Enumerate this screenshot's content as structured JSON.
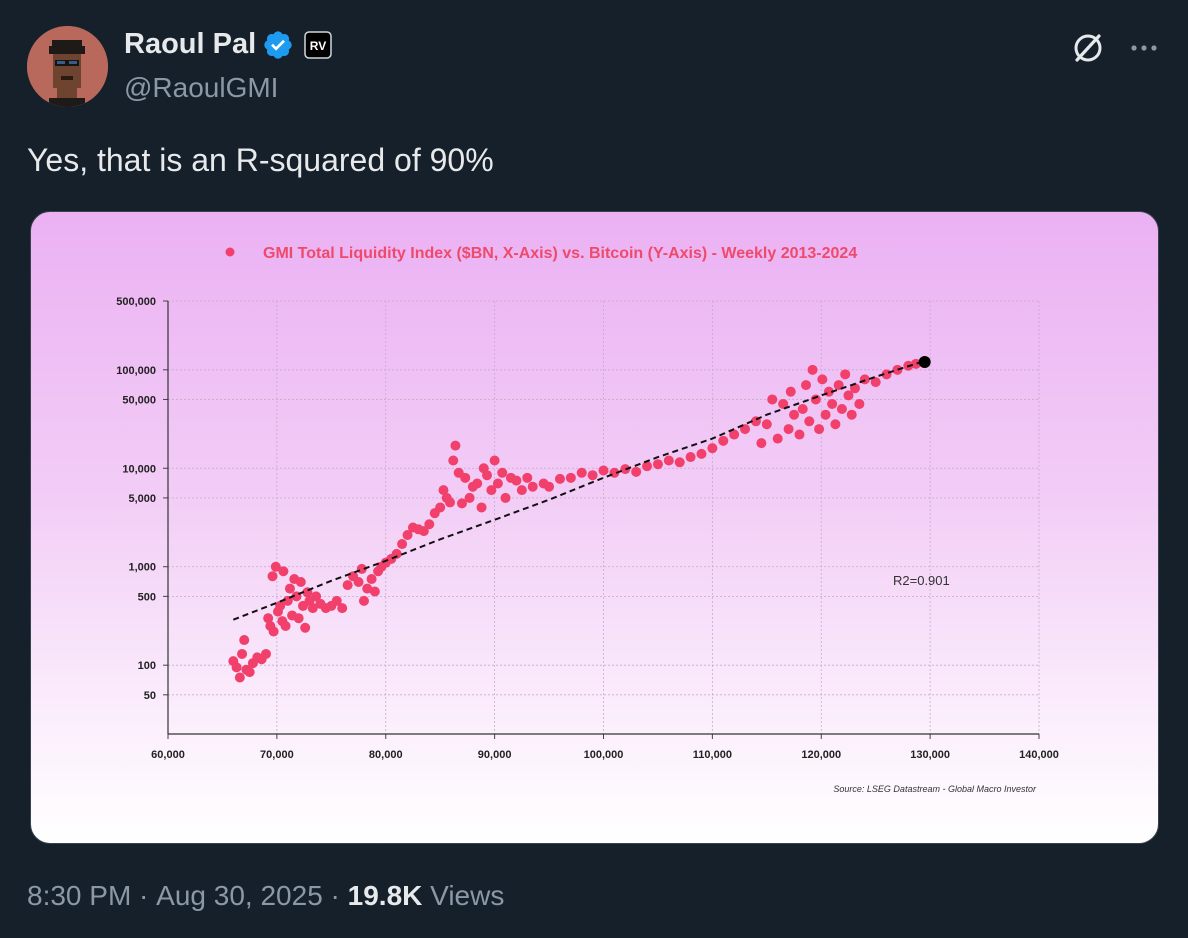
{
  "tweet": {
    "display_name": "Raoul Pal",
    "handle": "@RaoulGMI",
    "affiliate_badge": "RV",
    "text": "Yes, that is an R-squared of 90%",
    "time": "8:30 PM",
    "date": "Aug 30, 2025",
    "views_count": "19.8K",
    "views_label": "Views"
  },
  "icons": {
    "verified": "verified-badge-icon",
    "grok": "grok-icon",
    "more": "more-icon"
  },
  "colors": {
    "accent": "#1d9bf0",
    "points": "#f0406b",
    "title": "#ee4a6c"
  },
  "chart_data": {
    "type": "scatter",
    "title": "GMI Total Liquidity Index ($BN, X-Axis) vs. Bitcoin (Y-Axis) - Weekly 2013-2024",
    "xlabel": "",
    "ylabel": "",
    "x_scale": "linear",
    "y_scale": "log",
    "xlim": [
      60000,
      140000
    ],
    "ylim": [
      20,
      500000
    ],
    "x_ticks": [
      "60,000",
      "70,000",
      "80,000",
      "90,000",
      "100,000",
      "110,000",
      "120,000",
      "130,000",
      "140,000"
    ],
    "y_ticks": [
      {
        "value": 500000,
        "label": "500,000"
      },
      {
        "value": 100000,
        "label": "100,000"
      },
      {
        "value": 50000,
        "label": "50,000"
      },
      {
        "value": 10000,
        "label": "10,000"
      },
      {
        "value": 5000,
        "label": "5,000"
      },
      {
        "value": 1000,
        "label": "1,000"
      },
      {
        "value": 500,
        "label": "500"
      },
      {
        "value": 100,
        "label": "100"
      },
      {
        "value": 50,
        "label": "50"
      }
    ],
    "grid": true,
    "legend": "top",
    "annotation": "R2=0.901",
    "source": "Source: LSEG Datastream - Global Macro Investor",
    "trendline": [
      [
        66000,
        290
      ],
      [
        70000,
        430
      ],
      [
        75000,
        720
      ],
      [
        80000,
        1150
      ],
      [
        85000,
        1900
      ],
      [
        90000,
        3000
      ],
      [
        95000,
        4800
      ],
      [
        100000,
        8000
      ],
      [
        105000,
        13000
      ],
      [
        110000,
        20000
      ],
      [
        115000,
        35000
      ],
      [
        120000,
        55000
      ],
      [
        125000,
        85000
      ],
      [
        129000,
        118000
      ]
    ],
    "latest_point": [
      129500,
      120000
    ],
    "series": [
      {
        "points": [
          [
            66000,
            110
          ],
          [
            66300,
            95
          ],
          [
            66600,
            75
          ],
          [
            66800,
            130
          ],
          [
            67000,
            180
          ],
          [
            67200,
            90
          ],
          [
            67500,
            85
          ],
          [
            67800,
            105
          ],
          [
            68200,
            120
          ],
          [
            68600,
            115
          ],
          [
            69000,
            130
          ],
          [
            69200,
            300
          ],
          [
            69400,
            250
          ],
          [
            69600,
            800
          ],
          [
            69700,
            220
          ],
          [
            69900,
            1000
          ],
          [
            70100,
            350
          ],
          [
            70300,
            400
          ],
          [
            70500,
            280
          ],
          [
            70600,
            900
          ],
          [
            70800,
            250
          ],
          [
            71000,
            450
          ],
          [
            71200,
            600
          ],
          [
            71400,
            320
          ],
          [
            71600,
            750
          ],
          [
            71800,
            500
          ],
          [
            72000,
            300
          ],
          [
            72200,
            700
          ],
          [
            72400,
            400
          ],
          [
            72600,
            240
          ],
          [
            72800,
            550
          ],
          [
            73000,
            450
          ],
          [
            73300,
            380
          ],
          [
            73600,
            500
          ],
          [
            74000,
            420
          ],
          [
            74500,
            380
          ],
          [
            75000,
            400
          ],
          [
            75500,
            450
          ],
          [
            76000,
            380
          ],
          [
            76500,
            650
          ],
          [
            77000,
            800
          ],
          [
            77500,
            700
          ],
          [
            77800,
            950
          ],
          [
            78000,
            450
          ],
          [
            78300,
            600
          ],
          [
            78700,
            750
          ],
          [
            79000,
            560
          ],
          [
            79300,
            900
          ],
          [
            79600,
            1000
          ],
          [
            80000,
            1100
          ],
          [
            80500,
            1200
          ],
          [
            81000,
            1350
          ],
          [
            81500,
            1700
          ],
          [
            82000,
            2100
          ],
          [
            82500,
            2500
          ],
          [
            83000,
            2400
          ],
          [
            83500,
            2300
          ],
          [
            84000,
            2700
          ],
          [
            84500,
            3500
          ],
          [
            85000,
            4000
          ],
          [
            85300,
            6000
          ],
          [
            85600,
            5000
          ],
          [
            85900,
            4500
          ],
          [
            86200,
            12000
          ],
          [
            86400,
            17000
          ],
          [
            86700,
            9000
          ],
          [
            87000,
            4400
          ],
          [
            87300,
            8000
          ],
          [
            87700,
            5000
          ],
          [
            88000,
            6500
          ],
          [
            88400,
            7000
          ],
          [
            88800,
            4000
          ],
          [
            89000,
            10000
          ],
          [
            89300,
            8500
          ],
          [
            89700,
            6000
          ],
          [
            90000,
            12000
          ],
          [
            90300,
            7000
          ],
          [
            90700,
            9000
          ],
          [
            91000,
            5000
          ],
          [
            91500,
            8000
          ],
          [
            92000,
            7500
          ],
          [
            92500,
            6000
          ],
          [
            93000,
            8000
          ],
          [
            93500,
            6500
          ],
          [
            94500,
            7000
          ],
          [
            95000,
            6500
          ],
          [
            96000,
            7800
          ],
          [
            97000,
            8000
          ],
          [
            98000,
            9000
          ],
          [
            99000,
            8500
          ],
          [
            100000,
            9500
          ],
          [
            101000,
            9000
          ],
          [
            102000,
            9800
          ],
          [
            103000,
            9200
          ],
          [
            104000,
            10500
          ],
          [
            105000,
            11000
          ],
          [
            106000,
            12000
          ],
          [
            107000,
            11500
          ],
          [
            108000,
            13000
          ],
          [
            109000,
            14000
          ],
          [
            110000,
            16000
          ],
          [
            111000,
            19000
          ],
          [
            112000,
            22000
          ],
          [
            113000,
            25000
          ],
          [
            114000,
            30000
          ],
          [
            114500,
            18000
          ],
          [
            115000,
            28000
          ],
          [
            115500,
            50000
          ],
          [
            116000,
            20000
          ],
          [
            116500,
            45000
          ],
          [
            117000,
            25000
          ],
          [
            117200,
            60000
          ],
          [
            117500,
            35000
          ],
          [
            118000,
            22000
          ],
          [
            118300,
            40000
          ],
          [
            118600,
            70000
          ],
          [
            118900,
            30000
          ],
          [
            119200,
            100000
          ],
          [
            119500,
            50000
          ],
          [
            119800,
            25000
          ],
          [
            120100,
            80000
          ],
          [
            120400,
            35000
          ],
          [
            120700,
            60000
          ],
          [
            121000,
            45000
          ],
          [
            121300,
            28000
          ],
          [
            121600,
            70000
          ],
          [
            121900,
            40000
          ],
          [
            122200,
            90000
          ],
          [
            122500,
            55000
          ],
          [
            122800,
            35000
          ],
          [
            123100,
            65000
          ],
          [
            123500,
            45000
          ],
          [
            124000,
            80000
          ],
          [
            125000,
            75000
          ],
          [
            126000,
            90000
          ],
          [
            127000,
            100000
          ],
          [
            128000,
            110000
          ],
          [
            128700,
            115000
          ]
        ]
      }
    ]
  }
}
